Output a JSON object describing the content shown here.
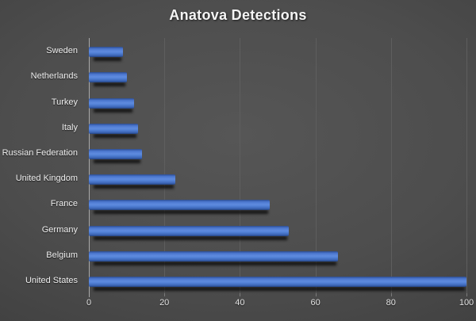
{
  "chart_data": {
    "type": "bar",
    "orientation": "horizontal",
    "title": "Anatova Detections",
    "categories": [
      "Sweden",
      "Netherlands",
      "Turkey",
      "Italy",
      "Russian Federation",
      "United Kingdom",
      "France",
      "Germany",
      "Belgium",
      "United States"
    ],
    "values": [
      9,
      10,
      12,
      13,
      14,
      23,
      48,
      53,
      66,
      101
    ],
    "xlabel": "",
    "ylabel": "",
    "x_ticks": [
      0,
      20,
      40,
      60,
      80,
      100
    ],
    "xlim": [
      0,
      100
    ],
    "grid": "vertical-only",
    "legend_position": "none",
    "bar_color": "#5584da",
    "bar_gradient": [
      "#2e4d8f",
      "#5f8bde",
      "#24417f"
    ],
    "background_color": "#4d4d4d",
    "background_style": "dark-radial-gradient",
    "title_color": "#f5f5f5",
    "label_color": "#f0f0f0",
    "axis_line_color": "#a9a9a9",
    "gridline_color": "#5e5e5e"
  }
}
